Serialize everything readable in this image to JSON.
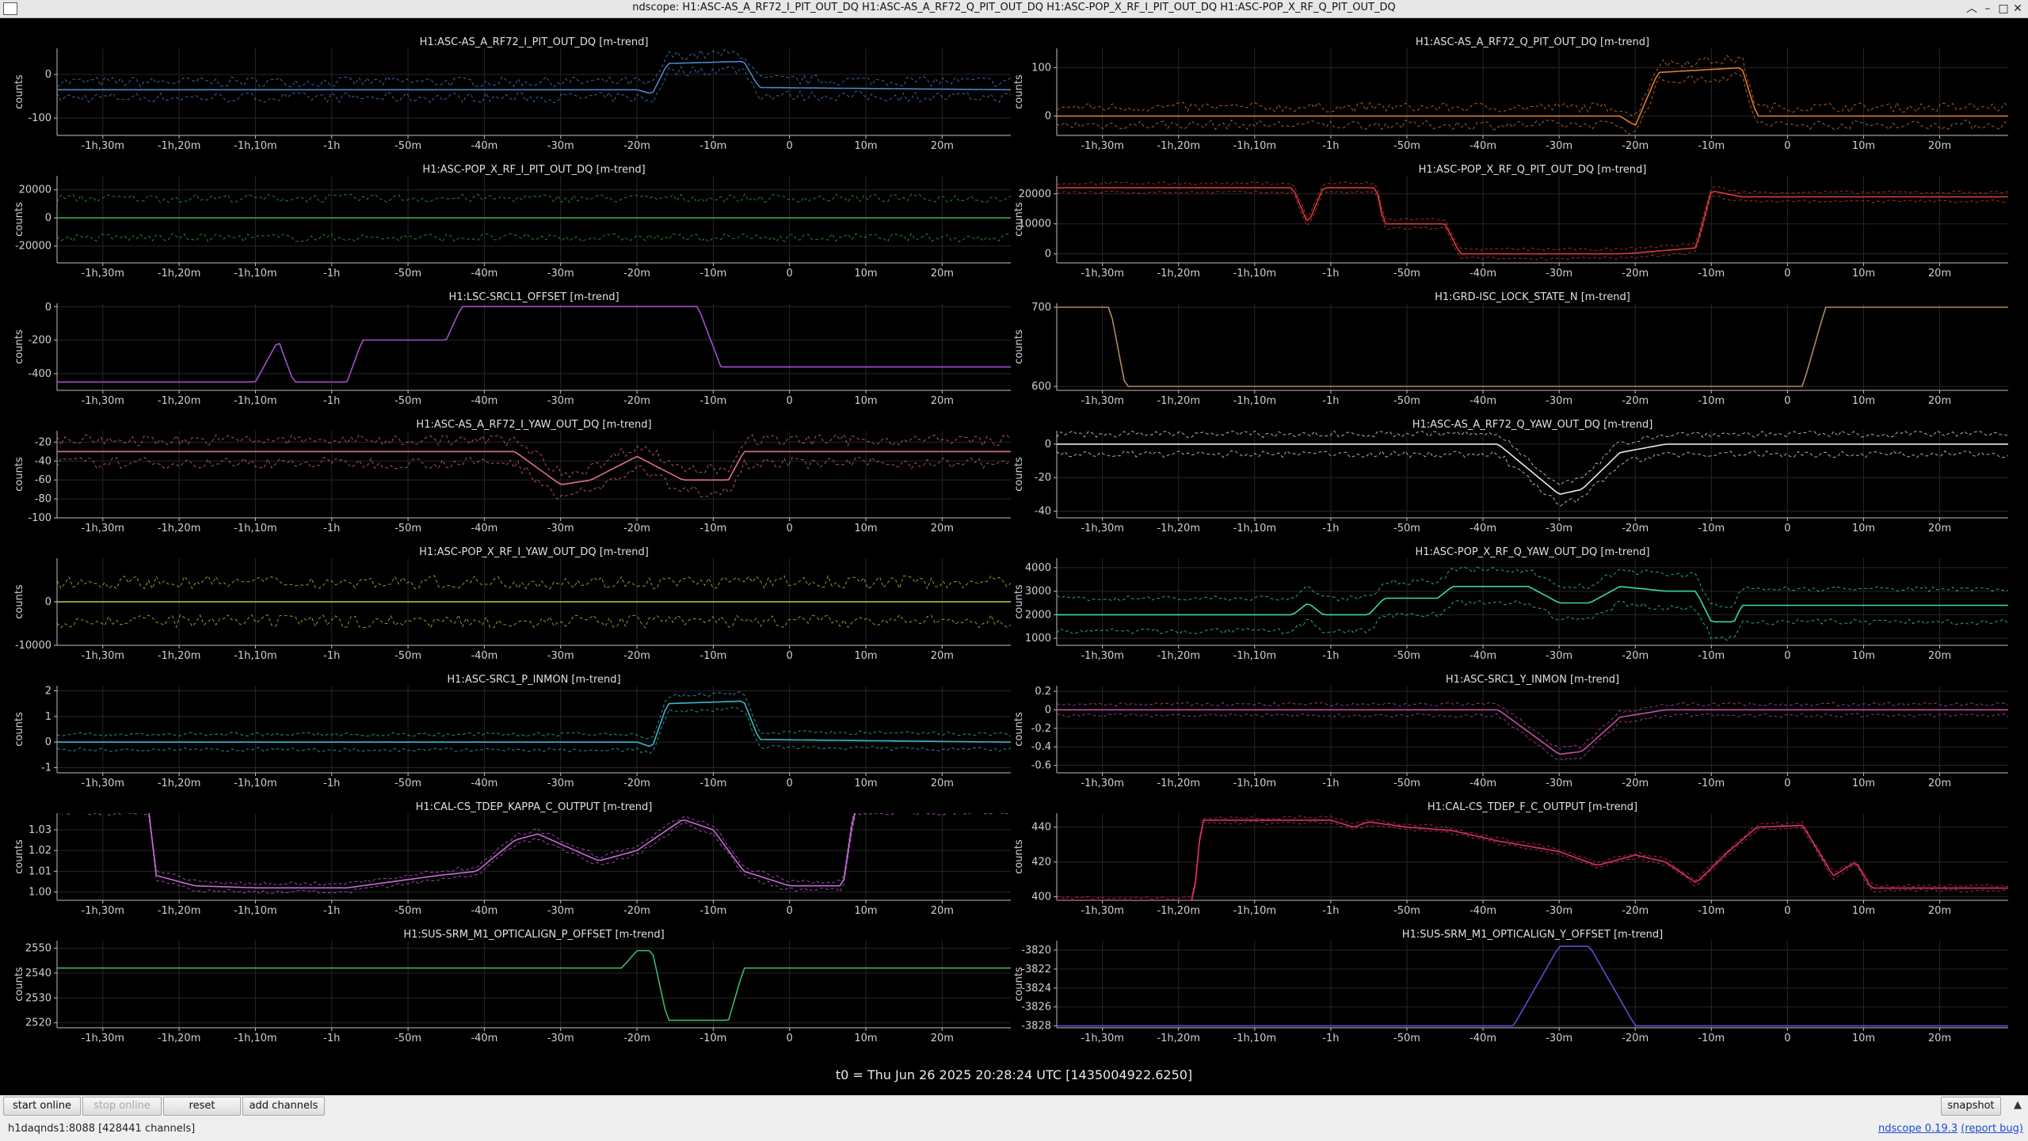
{
  "window": {
    "title": "ndscope: H1:ASC-AS_A_RF72_I_PIT_OUT_DQ H1:ASC-AS_A_RF72_Q_PIT_OUT_DQ H1:ASC-POP_X_RF_I_PIT_OUT_DQ H1:ASC-POP_X_RF_Q_PIT_OUT_DQ",
    "buttons": {
      "minimize": "–",
      "maximize": "□",
      "close": "✕",
      "shade": "︿"
    }
  },
  "xticks": [
    "-1h,30m",
    "-1h,20m",
    "-1h,10m",
    "-1h",
    "-50m",
    "-40m",
    "-30m",
    "-20m",
    "-10m",
    "0",
    "10m",
    "20m"
  ],
  "ylabel": "counts",
  "plots": [
    {
      "title": "H1:ASC-AS_A_RF72_I_PIT_OUT_DQ [m-trend]",
      "color": "#4e86c8",
      "yticks": [
        "0",
        "-100"
      ],
      "ylim": [
        -140,
        60
      ],
      "ytickvals": [
        0,
        -100
      ],
      "noise": 12,
      "band": 18,
      "pts": [
        [
          -95,
          -35
        ],
        [
          -20,
          -35
        ],
        [
          -18,
          -45
        ],
        [
          -16,
          25
        ],
        [
          -6,
          30
        ],
        [
          -4,
          -30
        ],
        [
          28,
          -35
        ]
      ]
    },
    {
      "title": "H1:ASC-AS_A_RF72_Q_PIT_OUT_DQ [m-trend]",
      "color": "#e07a2c",
      "yticks": [
        "100",
        "0"
      ],
      "ylim": [
        -40,
        140
      ],
      "ytickvals": [
        100,
        0
      ],
      "noise": 10,
      "band": 18,
      "pts": [
        [
          -95,
          0
        ],
        [
          -22,
          0
        ],
        [
          -20,
          -20
        ],
        [
          -17,
          90
        ],
        [
          -6,
          100
        ],
        [
          -4,
          0
        ],
        [
          28,
          0
        ]
      ]
    },
    {
      "title": "H1:ASC-POP_X_RF_I_PIT_OUT_DQ [m-trend]",
      "color": "#3ba843",
      "yticks": [
        "20000",
        "0",
        "-20000"
      ],
      "ylim": [
        -32000,
        30000
      ],
      "ytickvals": [
        20000,
        0,
        -20000
      ],
      "noise": 3000,
      "band": 14000,
      "pts": [
        [
          -95,
          0
        ],
        [
          28,
          0
        ]
      ]
    },
    {
      "title": "H1:ASC-POP_X_RF_Q_PIT_OUT_DQ [m-trend]",
      "color": "#d83a3a",
      "yticks": [
        "20000",
        "10000",
        "0"
      ],
      "ylim": [
        -3000,
        26000
      ],
      "ytickvals": [
        20000,
        10000,
        0
      ],
      "noise": 500,
      "band": 1500,
      "pts": [
        [
          -95,
          22000
        ],
        [
          -65,
          22000
        ],
        [
          -63,
          10000
        ],
        [
          -61,
          22000
        ],
        [
          -54,
          22000
        ],
        [
          -53,
          10000
        ],
        [
          -45,
          10000
        ],
        [
          -43,
          0
        ],
        [
          -22,
          0
        ],
        [
          -20,
          300
        ],
        [
          -12,
          2000
        ],
        [
          -10,
          21000
        ],
        [
          -6,
          19000
        ],
        [
          28,
          19000
        ]
      ]
    },
    {
      "title": "H1:LSC-SRCL1_OFFSET [m-trend]",
      "color": "#a64ed0",
      "yticks": [
        "0",
        "-200",
        "-400"
      ],
      "ylim": [
        -500,
        20
      ],
      "ytickvals": [
        0,
        -200,
        -400
      ],
      "noise": 0,
      "band": 0,
      "pts": [
        [
          -95,
          -450
        ],
        [
          -70,
          -450
        ],
        [
          -67,
          -200
        ],
        [
          -65,
          -450
        ],
        [
          -62,
          -450
        ],
        [
          -58,
          -450
        ],
        [
          -56,
          -200
        ],
        [
          -50,
          -200
        ],
        [
          -45,
          -200
        ],
        [
          -43,
          0
        ],
        [
          -12,
          0
        ],
        [
          -9,
          -360
        ],
        [
          28,
          -360
        ]
      ]
    },
    {
      "title": "H1:GRD-ISC_LOCK_STATE_N [m-trend]",
      "color": "#b38a5a",
      "yticks": [
        "700",
        "600"
      ],
      "ylim": [
        595,
        705
      ],
      "ytickvals": [
        700,
        600
      ],
      "noise": 0,
      "band": 0,
      "pts": [
        [
          -95,
          700
        ],
        [
          -89,
          700
        ],
        [
          -87,
          600
        ],
        [
          2,
          600
        ],
        [
          5,
          700
        ],
        [
          28,
          700
        ]
      ]
    },
    {
      "title": "H1:ASC-AS_A_RF72_I_YAW_OUT_DQ [m-trend]",
      "color": "#e06a9a",
      "yticks": [
        "-20",
        "-40",
        "-60",
        "-80",
        "-100"
      ],
      "ylim": [
        -100,
        -8
      ],
      "ytickvals": [
        -20,
        -40,
        -60,
        -80,
        -100
      ],
      "noise": 6,
      "band": 12,
      "pts": [
        [
          -95,
          -30
        ],
        [
          -36,
          -30
        ],
        [
          -30,
          -65
        ],
        [
          -26,
          -60
        ],
        [
          -20,
          -35
        ],
        [
          -14,
          -60
        ],
        [
          -8,
          -60
        ],
        [
          -6,
          -30
        ],
        [
          28,
          -30
        ]
      ]
    },
    {
      "title": "H1:ASC-AS_A_RF72_Q_YAW_OUT_DQ [m-trend]",
      "color": "#e8e8e8",
      "yticks": [
        "0",
        "-20",
        "-40"
      ],
      "ylim": [
        -44,
        8
      ],
      "ytickvals": [
        0,
        -20,
        -40
      ],
      "noise": 2,
      "band": 6,
      "pts": [
        [
          -95,
          0
        ],
        [
          -38,
          0
        ],
        [
          -30,
          -30
        ],
        [
          -27,
          -27
        ],
        [
          -22,
          -5
        ],
        [
          -16,
          0
        ],
        [
          28,
          0
        ]
      ]
    },
    {
      "title": "H1:ASC-POP_X_RF_I_YAW_OUT_DQ [m-trend]",
      "color": "#c8c83a",
      "yticks": [
        "0",
        "-10000"
      ],
      "ylim": [
        -10000,
        10000
      ],
      "ytickvals": [
        0,
        -10000
      ],
      "noise": 1500,
      "band": 4500,
      "pts": [
        [
          -95,
          0
        ],
        [
          28,
          0
        ]
      ]
    },
    {
      "title": "H1:ASC-POP_X_RF_Q_YAW_OUT_DQ [m-trend]",
      "color": "#3ad8b0",
      "yticks": [
        "4000",
        "3000",
        "2000",
        "1000"
      ],
      "ylim": [
        700,
        4400
      ],
      "ytickvals": [
        4000,
        3000,
        2000,
        1000
      ],
      "noise": 120,
      "band": 700,
      "pts": [
        [
          -95,
          2000
        ],
        [
          -65,
          2000
        ],
        [
          -63,
          2500
        ],
        [
          -61,
          2000
        ],
        [
          -55,
          2000
        ],
        [
          -53,
          2700
        ],
        [
          -46,
          2700
        ],
        [
          -44,
          3200
        ],
        [
          -34,
          3200
        ],
        [
          -30,
          2500
        ],
        [
          -26,
          2500
        ],
        [
          -22,
          3200
        ],
        [
          -19,
          3100
        ],
        [
          -16,
          3000
        ],
        [
          -12,
          3000
        ],
        [
          -10,
          1700
        ],
        [
          -7,
          1700
        ],
        [
          -6,
          2400
        ],
        [
          28,
          2400
        ]
      ]
    },
    {
      "title": "H1:ASC-SRC1_P_INMON [m-trend]",
      "color": "#3ab8c8",
      "yticks": [
        "2",
        "1",
        "0",
        "-1"
      ],
      "ylim": [
        -1.2,
        2.2
      ],
      "ytickvals": [
        2,
        1,
        0,
        -1
      ],
      "noise": 0.08,
      "band": 0.3,
      "pts": [
        [
          -95,
          0
        ],
        [
          -20,
          0
        ],
        [
          -18,
          -0.2
        ],
        [
          -16,
          1.5
        ],
        [
          -6,
          1.6
        ],
        [
          -4,
          0.1
        ],
        [
          28,
          0
        ]
      ]
    },
    {
      "title": "H1:ASC-SRC1_Y_INMON [m-trend]",
      "color": "#c84ea8",
      "yticks": [
        "0.2",
        "0",
        "-0.2",
        "-0.4",
        "-0.6"
      ],
      "ylim": [
        -0.68,
        0.26
      ],
      "ytickvals": [
        0.2,
        0,
        -0.2,
        -0.4,
        -0.6
      ],
      "noise": 0.02,
      "band": 0.06,
      "pts": [
        [
          -95,
          0
        ],
        [
          -38,
          0
        ],
        [
          -30,
          -0.48
        ],
        [
          -27,
          -0.45
        ],
        [
          -22,
          -0.08
        ],
        [
          -16,
          0
        ],
        [
          28,
          0
        ]
      ]
    },
    {
      "title": "H1:CAL-CS_TDEP_KAPPA_C_OUTPUT [m-trend]",
      "color": "#c86ad8",
      "yticks": [
        "1.03",
        "1.02",
        "1.01",
        "1.00"
      ],
      "ylim": [
        0.996,
        1.038
      ],
      "ytickvals": [
        1.03,
        1.02,
        1.01,
        1.0
      ],
      "noise": 0.001,
      "band": 0.002,
      "pts": [
        [
          -84,
          1.04
        ],
        [
          -83,
          1.008
        ],
        [
          -78,
          1.003
        ],
        [
          -70,
          1.002
        ],
        [
          -58,
          1.002
        ],
        [
          -46,
          1.008
        ],
        [
          -41,
          1.01
        ],
        [
          -36,
          1.025
        ],
        [
          -33,
          1.028
        ],
        [
          -25,
          1.015
        ],
        [
          -20,
          1.02
        ],
        [
          -14,
          1.035
        ],
        [
          -10,
          1.03
        ],
        [
          -6,
          1.01
        ],
        [
          0,
          1.003
        ],
        [
          7,
          1.003
        ],
        [
          8.5,
          1.04
        ]
      ]
    },
    {
      "title": "H1:CAL-CS_TDEP_F_C_OUTPUT [m-trend]",
      "color": "#d8306a",
      "yticks": [
        "440",
        "420",
        "400"
      ],
      "ylim": [
        398,
        448
      ],
      "ytickvals": [
        440,
        420,
        400
      ],
      "noise": 1,
      "band": 1.5,
      "pts": [
        [
          -78,
          398
        ],
        [
          -77,
          444
        ],
        [
          -60,
          444
        ],
        [
          -57,
          440
        ],
        [
          -55,
          443
        ],
        [
          -50,
          440
        ],
        [
          -44,
          438
        ],
        [
          -38,
          432
        ],
        [
          -30,
          426
        ],
        [
          -25,
          418
        ],
        [
          -20,
          424
        ],
        [
          -16,
          420
        ],
        [
          -12,
          408
        ],
        [
          -8,
          425
        ],
        [
          -4,
          440
        ],
        [
          2,
          441
        ],
        [
          6,
          412
        ],
        [
          9,
          420
        ],
        [
          11,
          405
        ],
        [
          28,
          405
        ]
      ]
    },
    {
      "title": "H1:SUS-SRM_M1_OPTICALIGN_P_OFFSET [m-trend]",
      "color": "#3ab86a",
      "yticks": [
        "2550",
        "2540",
        "2530",
        "2520"
      ],
      "ylim": [
        2518,
        2553
      ],
      "ytickvals": [
        2550,
        2540,
        2530,
        2520
      ],
      "noise": 0,
      "band": 0,
      "pts": [
        [
          -95,
          2542
        ],
        [
          -22,
          2542
        ],
        [
          -20,
          2549
        ],
        [
          -18,
          2549
        ],
        [
          -16,
          2521
        ],
        [
          -10,
          2521
        ],
        [
          -8,
          2521
        ],
        [
          -6,
          2542
        ],
        [
          28,
          2542
        ]
      ]
    },
    {
      "title": "H1:SUS-SRM_M1_OPTICALIGN_Y_OFFSET [m-trend]",
      "color": "#5a4ed8",
      "yticks": [
        "-3820",
        "-3822",
        "-3824",
        "-3826",
        "-3828"
      ],
      "ylim": [
        -3828.2,
        -3819
      ],
      "ytickvals": [
        -3820,
        -3822,
        -3824,
        -3826,
        -3828
      ],
      "noise": 0,
      "band": 0,
      "pts": [
        [
          -95,
          -3828
        ],
        [
          -36,
          -3828
        ],
        [
          -30,
          -3819.6
        ],
        [
          -26,
          -3819.6
        ],
        [
          -20,
          -3828
        ],
        [
          28,
          -3828
        ]
      ]
    }
  ],
  "t0_label": "t0 = Thu Jun 26 2025 20:28:24 UTC [1435004922.6250]",
  "toolbar": {
    "start_online": "start online",
    "stop_online": "stop online",
    "reset": "reset",
    "add_channels": "add channels",
    "snapshot": "snapshot",
    "expand": "▲"
  },
  "status": {
    "server": "h1daqnds1:8088  [428441 channels]",
    "app_link": "ndscope 0.19.3",
    "report_link": "(report bug)"
  }
}
